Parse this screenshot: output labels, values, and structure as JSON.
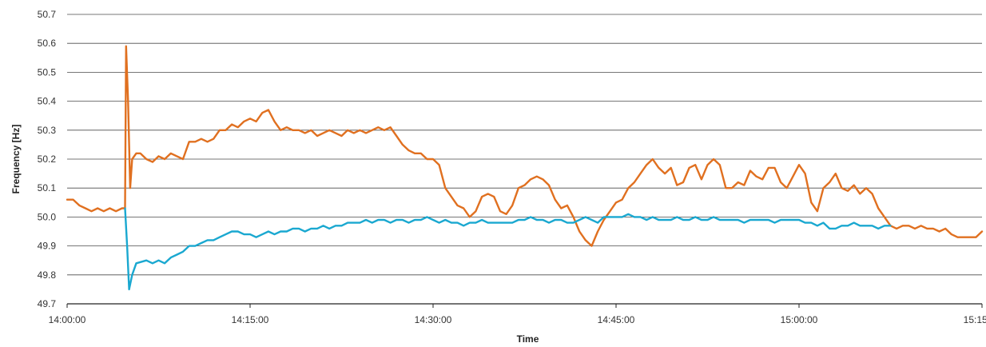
{
  "chart_data": {
    "type": "line",
    "title": "",
    "xlabel": "Time",
    "ylabel": "Frequency [Hz]",
    "ylim": [
      49.7,
      50.7
    ],
    "xlim": [
      "14:00:00",
      "15:15:00"
    ],
    "y_ticks": [
      "49.7",
      "49.8",
      "49.9",
      "50.0",
      "50.1",
      "50.2",
      "50.3",
      "50.4",
      "50.5",
      "50.6",
      "50.7"
    ],
    "x_ticks": [
      "14:00:00",
      "14:15:00",
      "14:30:00",
      "14:45:00",
      "15:00:00",
      "15:15:00"
    ],
    "grid": "horizontal",
    "legend": "none",
    "series": [
      {
        "color": "#e07020",
        "points": [
          [
            "14:00:00",
            50.06
          ],
          [
            "14:00:30",
            50.06
          ],
          [
            "14:01:00",
            50.04
          ],
          [
            "14:01:30",
            50.03
          ],
          [
            "14:02:00",
            50.02
          ],
          [
            "14:02:30",
            50.03
          ],
          [
            "14:03:00",
            50.02
          ],
          [
            "14:03:30",
            50.03
          ],
          [
            "14:04:00",
            50.02
          ],
          [
            "14:04:30",
            50.03
          ],
          [
            "14:04:45",
            50.03
          ],
          [
            "14:04:50",
            50.59
          ],
          [
            "14:05:00",
            50.4
          ],
          [
            "14:05:10",
            50.1
          ],
          [
            "14:05:20",
            50.2
          ],
          [
            "14:05:40",
            50.22
          ],
          [
            "14:06:00",
            50.22
          ],
          [
            "14:06:30",
            50.2
          ],
          [
            "14:07:00",
            50.19
          ],
          [
            "14:07:30",
            50.21
          ],
          [
            "14:08:00",
            50.2
          ],
          [
            "14:08:30",
            50.22
          ],
          [
            "14:09:00",
            50.21
          ],
          [
            "14:09:30",
            50.2
          ],
          [
            "14:10:00",
            50.26
          ],
          [
            "14:10:30",
            50.26
          ],
          [
            "14:11:00",
            50.27
          ],
          [
            "14:11:30",
            50.26
          ],
          [
            "14:12:00",
            50.27
          ],
          [
            "14:12:30",
            50.3
          ],
          [
            "14:13:00",
            50.3
          ],
          [
            "14:13:30",
            50.32
          ],
          [
            "14:14:00",
            50.31
          ],
          [
            "14:14:30",
            50.33
          ],
          [
            "14:15:00",
            50.34
          ],
          [
            "14:15:30",
            50.33
          ],
          [
            "14:16:00",
            50.36
          ],
          [
            "14:16:30",
            50.37
          ],
          [
            "14:17:00",
            50.33
          ],
          [
            "14:17:30",
            50.3
          ],
          [
            "14:18:00",
            50.31
          ],
          [
            "14:18:30",
            50.3
          ],
          [
            "14:19:00",
            50.3
          ],
          [
            "14:19:30",
            50.29
          ],
          [
            "14:20:00",
            50.3
          ],
          [
            "14:20:30",
            50.28
          ],
          [
            "14:21:00",
            50.29
          ],
          [
            "14:21:30",
            50.3
          ],
          [
            "14:22:00",
            50.29
          ],
          [
            "14:22:30",
            50.28
          ],
          [
            "14:23:00",
            50.3
          ],
          [
            "14:23:30",
            50.29
          ],
          [
            "14:24:00",
            50.3
          ],
          [
            "14:24:30",
            50.29
          ],
          [
            "14:25:00",
            50.3
          ],
          [
            "14:25:30",
            50.31
          ],
          [
            "14:26:00",
            50.3
          ],
          [
            "14:26:30",
            50.31
          ],
          [
            "14:27:00",
            50.28
          ],
          [
            "14:27:30",
            50.25
          ],
          [
            "14:28:00",
            50.23
          ],
          [
            "14:28:30",
            50.22
          ],
          [
            "14:29:00",
            50.22
          ],
          [
            "14:29:30",
            50.2
          ],
          [
            "14:30:00",
            50.2
          ],
          [
            "14:30:30",
            50.18
          ],
          [
            "14:31:00",
            50.1
          ],
          [
            "14:31:30",
            50.07
          ],
          [
            "14:32:00",
            50.04
          ],
          [
            "14:32:30",
            50.03
          ],
          [
            "14:33:00",
            50.0
          ],
          [
            "14:33:30",
            50.02
          ],
          [
            "14:34:00",
            50.07
          ],
          [
            "14:34:30",
            50.08
          ],
          [
            "14:35:00",
            50.07
          ],
          [
            "14:35:30",
            50.02
          ],
          [
            "14:36:00",
            50.01
          ],
          [
            "14:36:30",
            50.04
          ],
          [
            "14:37:00",
            50.1
          ],
          [
            "14:37:30",
            50.11
          ],
          [
            "14:38:00",
            50.13
          ],
          [
            "14:38:30",
            50.14
          ],
          [
            "14:39:00",
            50.13
          ],
          [
            "14:39:30",
            50.11
          ],
          [
            "14:40:00",
            50.06
          ],
          [
            "14:40:30",
            50.03
          ],
          [
            "14:41:00",
            50.04
          ],
          [
            "14:41:30",
            50.0
          ],
          [
            "14:42:00",
            49.95
          ],
          [
            "14:42:30",
            49.92
          ],
          [
            "14:43:00",
            49.9
          ],
          [
            "14:43:30",
            49.95
          ],
          [
            "14:44:00",
            49.99
          ],
          [
            "14:44:30",
            50.02
          ],
          [
            "14:45:00",
            50.05
          ],
          [
            "14:45:30",
            50.06
          ],
          [
            "14:46:00",
            50.1
          ],
          [
            "14:46:30",
            50.12
          ],
          [
            "14:47:00",
            50.15
          ],
          [
            "14:47:30",
            50.18
          ],
          [
            "14:48:00",
            50.2
          ],
          [
            "14:48:30",
            50.17
          ],
          [
            "14:49:00",
            50.15
          ],
          [
            "14:49:30",
            50.17
          ],
          [
            "14:50:00",
            50.11
          ],
          [
            "14:50:30",
            50.12
          ],
          [
            "14:51:00",
            50.17
          ],
          [
            "14:51:30",
            50.18
          ],
          [
            "14:52:00",
            50.13
          ],
          [
            "14:52:30",
            50.18
          ],
          [
            "14:53:00",
            50.2
          ],
          [
            "14:53:30",
            50.18
          ],
          [
            "14:54:00",
            50.1
          ],
          [
            "14:54:30",
            50.1
          ],
          [
            "14:55:00",
            50.12
          ],
          [
            "14:55:30",
            50.11
          ],
          [
            "14:56:00",
            50.16
          ],
          [
            "14:56:30",
            50.14
          ],
          [
            "14:57:00",
            50.13
          ],
          [
            "14:57:30",
            50.17
          ],
          [
            "14:58:00",
            50.17
          ],
          [
            "14:58:30",
            50.12
          ],
          [
            "14:59:00",
            50.1
          ],
          [
            "14:59:30",
            50.14
          ],
          [
            "15:00:00",
            50.18
          ],
          [
            "15:00:30",
            50.15
          ],
          [
            "15:01:00",
            50.05
          ],
          [
            "15:01:30",
            50.02
          ],
          [
            "15:02:00",
            50.1
          ],
          [
            "15:02:30",
            50.12
          ],
          [
            "15:03:00",
            50.15
          ],
          [
            "15:03:30",
            50.1
          ],
          [
            "15:04:00",
            50.09
          ],
          [
            "15:04:30",
            50.11
          ],
          [
            "15:05:00",
            50.08
          ],
          [
            "15:05:30",
            50.1
          ],
          [
            "15:06:00",
            50.08
          ],
          [
            "15:06:30",
            50.03
          ],
          [
            "15:07:00",
            50.0
          ],
          [
            "15:07:30",
            49.97
          ],
          [
            "15:08:00",
            49.96
          ],
          [
            "15:08:30",
            49.97
          ],
          [
            "15:09:00",
            49.97
          ],
          [
            "15:09:30",
            49.96
          ],
          [
            "15:10:00",
            49.97
          ],
          [
            "15:10:30",
            49.96
          ],
          [
            "15:11:00",
            49.96
          ],
          [
            "15:11:30",
            49.95
          ],
          [
            "15:12:00",
            49.96
          ],
          [
            "15:12:30",
            49.94
          ],
          [
            "15:13:00",
            49.93
          ],
          [
            "15:13:30",
            49.93
          ],
          [
            "15:14:00",
            49.93
          ],
          [
            "15:14:30",
            49.93
          ],
          [
            "15:15:00",
            49.95
          ]
        ]
      },
      {
        "color": "#1aa8d0",
        "points": [
          [
            "14:04:45",
            50.03
          ],
          [
            "14:04:55",
            49.9
          ],
          [
            "14:05:05",
            49.75
          ],
          [
            "14:05:20",
            49.8
          ],
          [
            "14:05:40",
            49.84
          ],
          [
            "14:06:30",
            49.85
          ],
          [
            "14:07:00",
            49.84
          ],
          [
            "14:07:30",
            49.85
          ],
          [
            "14:08:00",
            49.84
          ],
          [
            "14:08:30",
            49.86
          ],
          [
            "14:09:00",
            49.87
          ],
          [
            "14:09:30",
            49.88
          ],
          [
            "14:10:00",
            49.9
          ],
          [
            "14:10:30",
            49.9
          ],
          [
            "14:11:00",
            49.91
          ],
          [
            "14:11:30",
            49.92
          ],
          [
            "14:12:00",
            49.92
          ],
          [
            "14:12:30",
            49.93
          ],
          [
            "14:13:00",
            49.94
          ],
          [
            "14:13:30",
            49.95
          ],
          [
            "14:14:00",
            49.95
          ],
          [
            "14:14:30",
            49.94
          ],
          [
            "14:15:00",
            49.94
          ],
          [
            "14:15:30",
            49.93
          ],
          [
            "14:16:00",
            49.94
          ],
          [
            "14:16:30",
            49.95
          ],
          [
            "14:17:00",
            49.94
          ],
          [
            "14:17:30",
            49.95
          ],
          [
            "14:18:00",
            49.95
          ],
          [
            "14:18:30",
            49.96
          ],
          [
            "14:19:00",
            49.96
          ],
          [
            "14:19:30",
            49.95
          ],
          [
            "14:20:00",
            49.96
          ],
          [
            "14:20:30",
            49.96
          ],
          [
            "14:21:00",
            49.97
          ],
          [
            "14:21:30",
            49.96
          ],
          [
            "14:22:00",
            49.97
          ],
          [
            "14:22:30",
            49.97
          ],
          [
            "14:23:00",
            49.98
          ],
          [
            "14:23:30",
            49.98
          ],
          [
            "14:24:00",
            49.98
          ],
          [
            "14:24:30",
            49.99
          ],
          [
            "14:25:00",
            49.98
          ],
          [
            "14:25:30",
            49.99
          ],
          [
            "14:26:00",
            49.99
          ],
          [
            "14:26:30",
            49.98
          ],
          [
            "14:27:00",
            49.99
          ],
          [
            "14:27:30",
            49.99
          ],
          [
            "14:28:00",
            49.98
          ],
          [
            "14:28:30",
            49.99
          ],
          [
            "14:29:00",
            49.99
          ],
          [
            "14:29:30",
            50.0
          ],
          [
            "14:30:00",
            49.99
          ],
          [
            "14:30:30",
            49.98
          ],
          [
            "14:31:00",
            49.99
          ],
          [
            "14:31:30",
            49.98
          ],
          [
            "14:32:00",
            49.98
          ],
          [
            "14:32:30",
            49.97
          ],
          [
            "14:33:00",
            49.98
          ],
          [
            "14:33:30",
            49.98
          ],
          [
            "14:34:00",
            49.99
          ],
          [
            "14:34:30",
            49.98
          ],
          [
            "14:35:00",
            49.98
          ],
          [
            "14:35:30",
            49.98
          ],
          [
            "14:36:00",
            49.98
          ],
          [
            "14:36:30",
            49.98
          ],
          [
            "14:37:00",
            49.99
          ],
          [
            "14:37:30",
            49.99
          ],
          [
            "14:38:00",
            50.0
          ],
          [
            "14:38:30",
            49.99
          ],
          [
            "14:39:00",
            49.99
          ],
          [
            "14:39:30",
            49.98
          ],
          [
            "14:40:00",
            49.99
          ],
          [
            "14:40:30",
            49.99
          ],
          [
            "14:41:00",
            49.98
          ],
          [
            "14:41:30",
            49.98
          ],
          [
            "14:42:00",
            49.99
          ],
          [
            "14:42:30",
            50.0
          ],
          [
            "14:43:00",
            49.99
          ],
          [
            "14:43:30",
            49.98
          ],
          [
            "14:44:00",
            50.0
          ],
          [
            "14:44:30",
            50.0
          ],
          [
            "14:45:00",
            50.0
          ],
          [
            "14:45:30",
            50.0
          ],
          [
            "14:46:00",
            50.01
          ],
          [
            "14:46:30",
            50.0
          ],
          [
            "14:47:00",
            50.0
          ],
          [
            "14:47:30",
            49.99
          ],
          [
            "14:48:00",
            50.0
          ],
          [
            "14:48:30",
            49.99
          ],
          [
            "14:49:00",
            49.99
          ],
          [
            "14:49:30",
            49.99
          ],
          [
            "14:50:00",
            50.0
          ],
          [
            "14:50:30",
            49.99
          ],
          [
            "14:51:00",
            49.99
          ],
          [
            "14:51:30",
            50.0
          ],
          [
            "14:52:00",
            49.99
          ],
          [
            "14:52:30",
            49.99
          ],
          [
            "14:53:00",
            50.0
          ],
          [
            "14:53:30",
            49.99
          ],
          [
            "14:54:00",
            49.99
          ],
          [
            "14:54:30",
            49.99
          ],
          [
            "14:55:00",
            49.99
          ],
          [
            "14:55:30",
            49.98
          ],
          [
            "14:56:00",
            49.99
          ],
          [
            "14:56:30",
            49.99
          ],
          [
            "14:57:00",
            49.99
          ],
          [
            "14:57:30",
            49.99
          ],
          [
            "14:58:00",
            49.98
          ],
          [
            "14:58:30",
            49.99
          ],
          [
            "14:59:00",
            49.99
          ],
          [
            "14:59:30",
            49.99
          ],
          [
            "15:00:00",
            49.99
          ],
          [
            "15:00:30",
            49.98
          ],
          [
            "15:01:00",
            49.98
          ],
          [
            "15:01:30",
            49.97
          ],
          [
            "15:02:00",
            49.98
          ],
          [
            "15:02:30",
            49.96
          ],
          [
            "15:03:00",
            49.96
          ],
          [
            "15:03:30",
            49.97
          ],
          [
            "15:04:00",
            49.97
          ],
          [
            "15:04:30",
            49.98
          ],
          [
            "15:05:00",
            49.97
          ],
          [
            "15:05:30",
            49.97
          ],
          [
            "15:06:00",
            49.97
          ],
          [
            "15:06:30",
            49.96
          ],
          [
            "15:07:00",
            49.97
          ],
          [
            "15:07:30",
            49.97
          ]
        ]
      }
    ]
  }
}
